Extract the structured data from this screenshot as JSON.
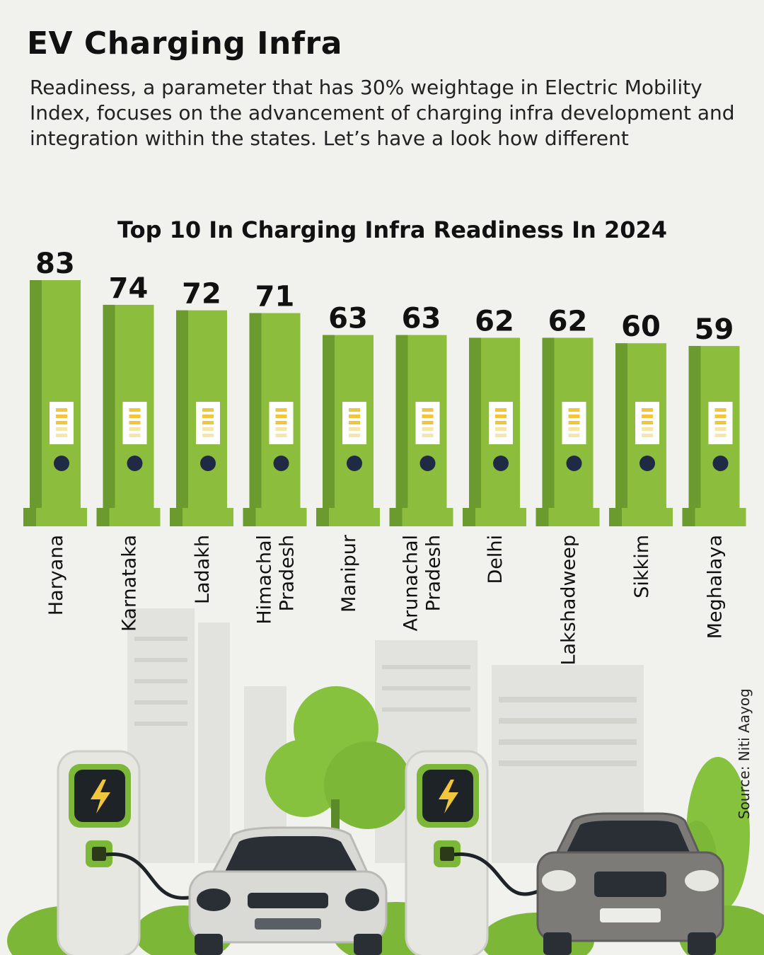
{
  "header": {
    "title": "EV Charging Infra",
    "subtitle": "Readiness, a parameter that has 30% weightage in Electric Mobility Index, focuses on the advancement of charging infra development and integration within the states. Let’s have a look how different"
  },
  "source": "Source: Niti Aayog",
  "colors": {
    "bar_main": "#8dbd3c",
    "bar_shade": "#6b9a2e",
    "dot": "#1f2a44",
    "indicator": "#f2c63c"
  },
  "chart_data": {
    "type": "bar",
    "title": "Top 10 In Charging Infra Readiness In 2024",
    "categories": [
      [
        "Haryana"
      ],
      [
        "Karnataka"
      ],
      [
        "Ladakh"
      ],
      [
        "Himachal",
        "Pradesh"
      ],
      [
        "Manipur"
      ],
      [
        "Arunachal",
        "Pradesh"
      ],
      [
        "Delhi"
      ],
      [
        "Lakshadweep"
      ],
      [
        "Sikkim"
      ],
      [
        "Meghalaya"
      ]
    ],
    "values": [
      83,
      74,
      72,
      71,
      63,
      63,
      62,
      62,
      60,
      59
    ],
    "xlabel": "",
    "ylabel": "",
    "grid": false,
    "legend": "none"
  }
}
